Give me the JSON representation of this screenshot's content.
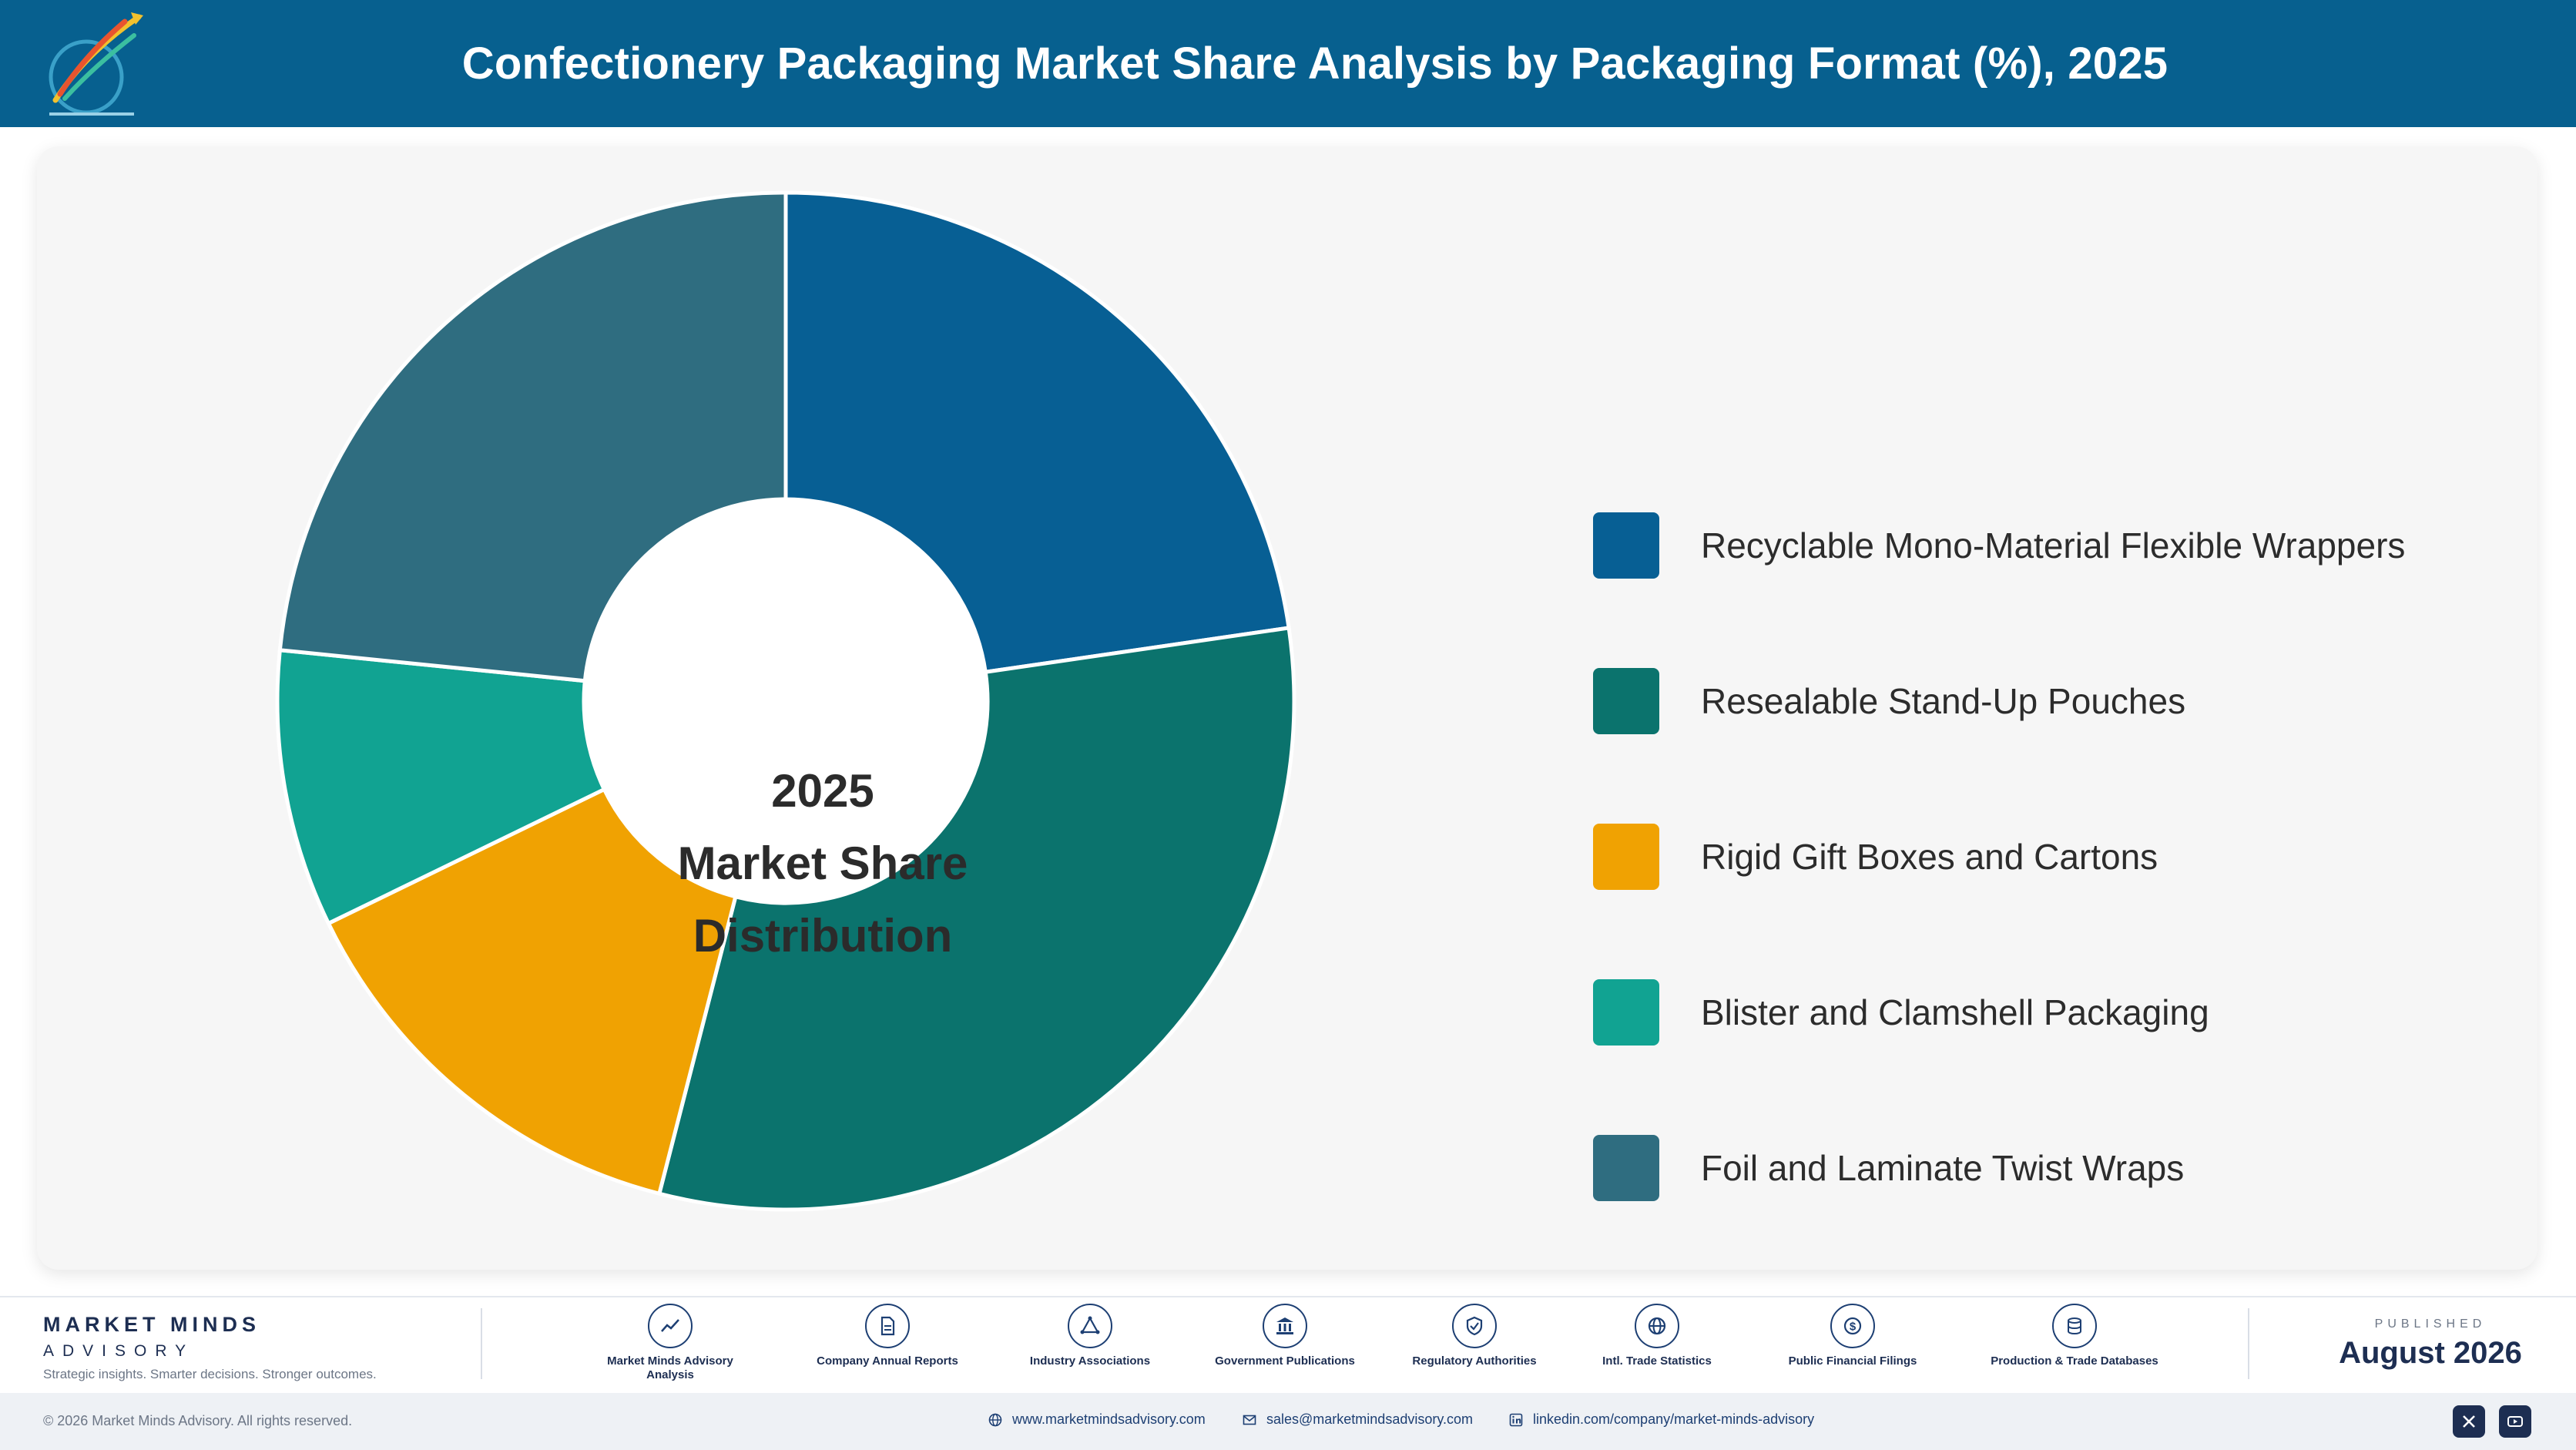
{
  "header": {
    "title": "Confectionery Packaging Market Share Analysis by Packaging Format (%), 2025",
    "logo_icon": "market-minds-logo-icon"
  },
  "chart_data": {
    "type": "pie",
    "style": "donut",
    "center_label": [
      "2025",
      "Market Share",
      "Distribution"
    ],
    "categories": [
      "Recyclable Mono-Material Flexible Wrappers",
      "Resealable Stand-Up Pouches",
      "Rigid Gift Boxes and Cartons",
      "Blister and Clamshell Packaging",
      "Foil and Laminate Twist Wraps"
    ],
    "values": [
      22.7,
      31.3,
      13.8,
      8.8,
      23.4
    ],
    "colors": [
      "#075f94",
      "#0b736d",
      "#f0a202",
      "#11a392",
      "#2f6d80"
    ],
    "legend_position": "right"
  },
  "footer": {
    "brand_name": "MARKET MINDS",
    "brand_sub": "ADVISORY",
    "tagline": "Strategic insights. Smarter decisions. Stronger outcomes.",
    "sources": [
      {
        "label": "Market Minds Advisory Analysis",
        "icon": "trend-line-icon"
      },
      {
        "label": "Company Annual Reports",
        "icon": "document-icon"
      },
      {
        "label": "Industry Associations",
        "icon": "network-icon"
      },
      {
        "label": "Government Publications",
        "icon": "government-building-icon"
      },
      {
        "label": "Regulatory Authorities",
        "icon": "shield-check-icon"
      },
      {
        "label": "Intl. Trade Statistics",
        "icon": "globe-icon"
      },
      {
        "label": "Public Financial Filings",
        "icon": "dollar-coin-icon"
      },
      {
        "label": "Production & Trade Databases",
        "icon": "database-icon"
      }
    ],
    "published_label": "PUBLISHED",
    "published_date": "August 2026",
    "copyright": "© 2026 Market Minds Advisory. All rights reserved.",
    "website": "www.marketmindsadvisory.com",
    "email": "sales@marketmindsadvisory.com",
    "linkedin": "linkedin.com/company/market-minds-advisory",
    "social_icons": [
      "x-icon",
      "youtube-icon"
    ]
  }
}
